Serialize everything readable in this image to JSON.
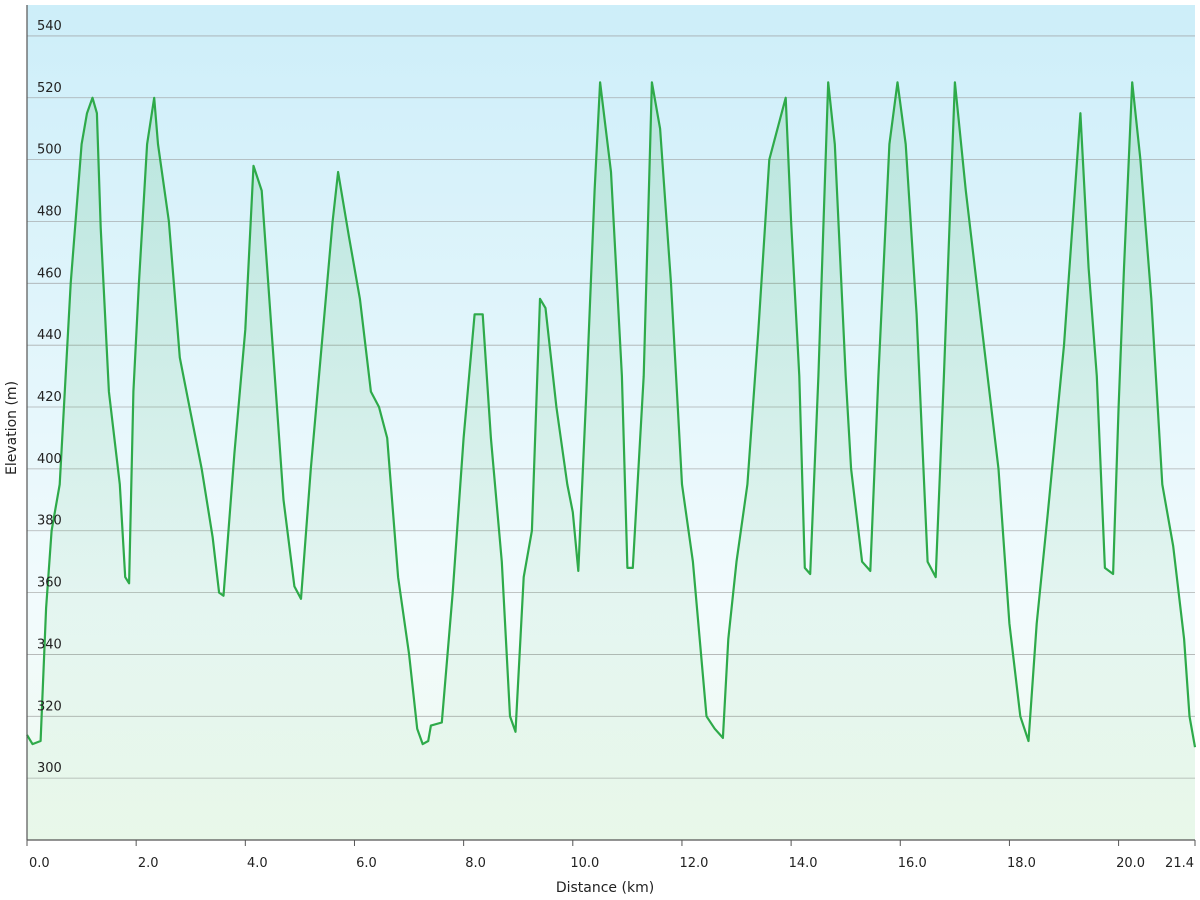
{
  "chart_data": {
    "type": "area",
    "xlabel": "Distance  (km)",
    "ylabel": "Elevation (m)",
    "xlim": [
      0,
      21.4
    ],
    "ylim": [
      280,
      550
    ],
    "x_ticks": [
      {
        "value": 0.0,
        "label": "0.0"
      },
      {
        "value": 2.0,
        "label": "2.0"
      },
      {
        "value": 4.0,
        "label": "4.0"
      },
      {
        "value": 6.0,
        "label": "6.0"
      },
      {
        "value": 8.0,
        "label": "8.0"
      },
      {
        "value": 10.0,
        "label": "10.0"
      },
      {
        "value": 12.0,
        "label": "12.0"
      },
      {
        "value": 14.0,
        "label": "14.0"
      },
      {
        "value": 16.0,
        "label": "16.0"
      },
      {
        "value": 18.0,
        "label": "18.0"
      },
      {
        "value": 20.0,
        "label": "20.0"
      },
      {
        "value": 21.4,
        "label": "21.4"
      }
    ],
    "y_ticks": [
      300,
      320,
      340,
      360,
      380,
      400,
      420,
      440,
      460,
      480,
      500,
      520,
      540
    ],
    "grid": {
      "horizontal": true,
      "vertical": false
    },
    "colors": {
      "line": "#2eaa4a",
      "fill": "#2eaa4a",
      "bg_top": "#cdeef9",
      "bg_mid": "#f2fbfd",
      "bg_bottom": "#eefaee",
      "grid": "#999999",
      "axis": "#555555"
    },
    "series": [
      {
        "x": [
          0.0,
          0.1,
          0.25,
          0.35,
          0.45,
          0.6,
          0.8,
          1.0,
          1.1,
          1.2,
          1.28,
          1.35,
          1.5,
          1.7,
          1.8,
          1.87,
          1.95,
          2.05,
          2.2,
          2.33,
          2.4,
          2.6,
          2.8,
          3.0,
          3.2,
          3.4,
          3.52,
          3.6,
          3.8,
          4.0,
          4.15,
          4.3,
          4.5,
          4.7,
          4.9,
          5.02,
          5.2,
          5.4,
          5.6,
          5.7,
          5.9,
          6.1,
          6.3,
          6.45,
          6.6,
          6.8,
          7.0,
          7.15,
          7.25,
          7.35,
          7.4,
          7.6,
          7.8,
          8.0,
          8.2,
          8.35,
          8.5,
          8.7,
          8.85,
          8.95,
          9.1,
          9.25,
          9.4,
          9.5,
          9.7,
          9.9,
          10.0,
          10.1,
          10.25,
          10.4,
          10.5,
          10.7,
          10.9,
          11.0,
          11.1,
          11.3,
          11.45,
          11.6,
          11.8,
          12.0,
          12.2,
          12.45,
          12.6,
          12.75,
          12.85,
          13.0,
          13.2,
          13.4,
          13.6,
          13.75,
          13.9,
          14.0,
          14.15,
          14.25,
          14.35,
          14.5,
          14.68,
          14.8,
          15.0,
          15.1,
          15.3,
          15.45,
          15.6,
          15.8,
          15.95,
          16.1,
          16.3,
          16.5,
          16.65,
          16.8,
          17.0,
          17.2,
          17.5,
          17.8,
          18.0,
          18.2,
          18.35,
          18.5,
          18.7,
          19.0,
          19.3,
          19.45,
          19.6,
          19.75,
          19.9,
          20.0,
          20.1,
          20.25,
          20.4,
          20.6,
          20.8,
          21.0,
          21.2,
          21.3,
          21.4
        ],
        "y": [
          314,
          311,
          312,
          355,
          380,
          395,
          460,
          505,
          515,
          520,
          515,
          478,
          425,
          395,
          365,
          363,
          425,
          460,
          505,
          520,
          505,
          480,
          436,
          418,
          400,
          378,
          360,
          359,
          405,
          445,
          498,
          490,
          440,
          390,
          362,
          358,
          400,
          440,
          480,
          496,
          475,
          455,
          425,
          420,
          410,
          365,
          340,
          316,
          311,
          312,
          317,
          318,
          360,
          410,
          450,
          450,
          410,
          370,
          320,
          315,
          365,
          380,
          455,
          452,
          420,
          395,
          386,
          367,
          425,
          490,
          525,
          496,
          430,
          368,
          368,
          430,
          525,
          510,
          460,
          395,
          370,
          320,
          316,
          313,
          345,
          370,
          395,
          445,
          500,
          510,
          520,
          480,
          430,
          368,
          366,
          430,
          525,
          505,
          430,
          400,
          370,
          367,
          430,
          505,
          525,
          505,
          450,
          370,
          365,
          430,
          525,
          490,
          445,
          400,
          350,
          320,
          312,
          350,
          385,
          440,
          515,
          465,
          430,
          368,
          366,
          420,
          465,
          525,
          500,
          455,
          395,
          375,
          345,
          320,
          310
        ]
      }
    ]
  }
}
